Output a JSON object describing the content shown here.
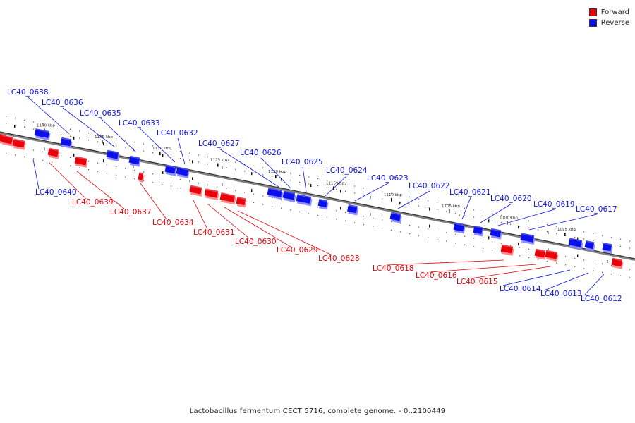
{
  "legend": {
    "items": [
      {
        "label": "Forward",
        "color": "#e8000b"
      },
      {
        "label": "Reverse",
        "color": "#0b10e8"
      }
    ]
  },
  "caption": "Lactobacillus fermentum CECT 5716, complete genome. - 0..2100449",
  "colors": {
    "forward": "#e8000b",
    "forward_shade": "#ff8a8a",
    "reverse": "#0b10e8",
    "reverse_shade": "#8a8cff",
    "axis": "#808080",
    "axis_dark": "#333333"
  },
  "ticks": [
    "1140 kbp",
    "1135 kbp",
    "1130 kbp",
    "1125 kbp",
    "1120 kbp",
    "1115 kbp",
    "1110 kbp",
    "1105 kbp",
    "1100 kbp",
    "1095 kbp"
  ],
  "genes": {
    "reverse": [
      "LC40_0638",
      "LC40_0636",
      "LC40_0635",
      "LC40_0633",
      "LC40_0632",
      "LC40_0627",
      "LC40_0626",
      "LC40_0625",
      "LC40_0624",
      "LC40_0623",
      "LC40_0622",
      "LC40_0621",
      "LC40_0620",
      "LC40_0619",
      "LC40_0617",
      "LC40_0640",
      "LC40_0614",
      "LC40_0613",
      "LC40_0612"
    ],
    "forward": [
      "LC40_0639",
      "LC40_0637",
      "LC40_0634",
      "LC40_0631",
      "LC40_0630",
      "LC40_0629",
      "LC40_0628",
      "LC40_0618",
      "LC40_0616",
      "LC40_0615"
    ]
  }
}
